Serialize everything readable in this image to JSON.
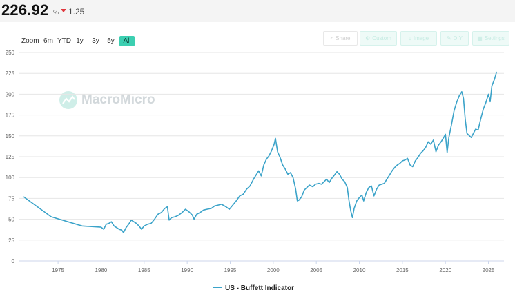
{
  "header": {
    "value": "226.92",
    "unit": "%",
    "change": "1.25",
    "change_direction": "down",
    "change_color": "#e0383e"
  },
  "range_selector": {
    "zoom_label": "Zoom",
    "buttons": [
      "6m",
      "YTD",
      "1y",
      "3y",
      "5y",
      "All"
    ],
    "active": "All"
  },
  "toolbar": {
    "share": "Share",
    "custom": "Custom",
    "image": "Image",
    "diy": "DIY",
    "settings": "Settings"
  },
  "watermark": {
    "text": "MacroMicro"
  },
  "chart_data": {
    "type": "line",
    "title": "",
    "xlabel": "",
    "ylabel": "",
    "xlim": [
      1970.5,
      2026.8
    ],
    "ylim": [
      0,
      250
    ],
    "y_ticks": [
      "0",
      "25",
      "50",
      "75",
      "100",
      "125",
      "150",
      "175",
      "200",
      "225",
      "250"
    ],
    "x_ticks": [
      "1975",
      "1980",
      "1985",
      "1990",
      "1995",
      "2000",
      "2005",
      "2010",
      "2015",
      "2020",
      "2025"
    ],
    "grid": true,
    "legend_position": "bottom-center",
    "series": [
      {
        "name": "US - Buffett Indicator",
        "color": "#3ba3c9",
        "points": [
          [
            1971.0,
            77
          ],
          [
            1974.2,
            53
          ],
          [
            1977.8,
            42
          ],
          [
            1980.0,
            40.5
          ],
          [
            1980.3,
            38
          ],
          [
            1980.6,
            44
          ],
          [
            1980.9,
            45
          ],
          [
            1981.2,
            47
          ],
          [
            1981.5,
            42
          ],
          [
            1981.8,
            40
          ],
          [
            1982.1,
            38
          ],
          [
            1982.4,
            37
          ],
          [
            1982.6,
            34
          ],
          [
            1982.9,
            40
          ],
          [
            1983.2,
            44
          ],
          [
            1983.5,
            49
          ],
          [
            1983.8,
            47
          ],
          [
            1984.1,
            45
          ],
          [
            1984.4,
            42
          ],
          [
            1984.7,
            38
          ],
          [
            1985.0,
            42
          ],
          [
            1985.4,
            44
          ],
          [
            1985.8,
            45
          ],
          [
            1986.2,
            50
          ],
          [
            1986.6,
            56
          ],
          [
            1987.0,
            58
          ],
          [
            1987.4,
            63
          ],
          [
            1987.7,
            65
          ],
          [
            1987.9,
            49
          ],
          [
            1988.2,
            52
          ],
          [
            1988.6,
            53
          ],
          [
            1989.0,
            55
          ],
          [
            1989.4,
            58
          ],
          [
            1989.8,
            62
          ],
          [
            1990.2,
            59
          ],
          [
            1990.6,
            55
          ],
          [
            1990.8,
            50
          ],
          [
            1991.1,
            56
          ],
          [
            1991.5,
            58
          ],
          [
            1991.9,
            61
          ],
          [
            1992.3,
            62
          ],
          [
            1992.8,
            63
          ],
          [
            1993.2,
            66
          ],
          [
            1993.6,
            67
          ],
          [
            1994.0,
            68
          ],
          [
            1994.5,
            65
          ],
          [
            1994.9,
            62
          ],
          [
            1995.3,
            67
          ],
          [
            1995.7,
            72
          ],
          [
            1996.1,
            78
          ],
          [
            1996.5,
            80
          ],
          [
            1996.9,
            86
          ],
          [
            1997.3,
            90
          ],
          [
            1997.7,
            98
          ],
          [
            1998.0,
            103
          ],
          [
            1998.3,
            108
          ],
          [
            1998.6,
            102
          ],
          [
            1998.9,
            115
          ],
          [
            1999.2,
            122
          ],
          [
            1999.5,
            126
          ],
          [
            1999.8,
            132
          ],
          [
            2000.1,
            140
          ],
          [
            2000.25,
            147
          ],
          [
            2000.5,
            131
          ],
          [
            2000.8,
            124
          ],
          [
            2001.1,
            115
          ],
          [
            2001.4,
            110
          ],
          [
            2001.7,
            104
          ],
          [
            2002.0,
            106
          ],
          [
            2002.3,
            100
          ],
          [
            2002.6,
            86
          ],
          [
            2002.8,
            72
          ],
          [
            2003.0,
            73
          ],
          [
            2003.3,
            77
          ],
          [
            2003.6,
            85
          ],
          [
            2003.9,
            88
          ],
          [
            2004.2,
            91
          ],
          [
            2004.6,
            89
          ],
          [
            2004.9,
            92
          ],
          [
            2005.3,
            93
          ],
          [
            2005.6,
            92
          ],
          [
            2005.9,
            95
          ],
          [
            2006.2,
            98
          ],
          [
            2006.5,
            94
          ],
          [
            2006.8,
            99
          ],
          [
            2007.1,
            103
          ],
          [
            2007.4,
            107
          ],
          [
            2007.7,
            104
          ],
          [
            2008.0,
            98
          ],
          [
            2008.3,
            95
          ],
          [
            2008.6,
            88
          ],
          [
            2008.8,
            72
          ],
          [
            2009.0,
            60
          ],
          [
            2009.2,
            52
          ],
          [
            2009.4,
            63
          ],
          [
            2009.7,
            72
          ],
          [
            2010.0,
            76
          ],
          [
            2010.3,
            79
          ],
          [
            2010.5,
            72
          ],
          [
            2010.8,
            82
          ],
          [
            2011.1,
            88
          ],
          [
            2011.4,
            90
          ],
          [
            2011.7,
            78
          ],
          [
            2012.0,
            86
          ],
          [
            2012.3,
            91
          ],
          [
            2012.6,
            92
          ],
          [
            2012.9,
            93
          ],
          [
            2013.2,
            98
          ],
          [
            2013.5,
            103
          ],
          [
            2013.8,
            108
          ],
          [
            2014.1,
            112
          ],
          [
            2014.4,
            115
          ],
          [
            2014.7,
            117
          ],
          [
            2015.0,
            120
          ],
          [
            2015.3,
            121
          ],
          [
            2015.6,
            123
          ],
          [
            2015.9,
            115
          ],
          [
            2016.2,
            113
          ],
          [
            2016.5,
            120
          ],
          [
            2016.8,
            124
          ],
          [
            2017.1,
            129
          ],
          [
            2017.4,
            132
          ],
          [
            2017.7,
            136
          ],
          [
            2018.0,
            143
          ],
          [
            2018.3,
            140
          ],
          [
            2018.6,
            145
          ],
          [
            2018.9,
            131
          ],
          [
            2019.2,
            139
          ],
          [
            2019.5,
            143
          ],
          [
            2019.8,
            148
          ],
          [
            2020.0,
            152
          ],
          [
            2020.2,
            130
          ],
          [
            2020.4,
            148
          ],
          [
            2020.7,
            163
          ],
          [
            2021.0,
            180
          ],
          [
            2021.3,
            190
          ],
          [
            2021.6,
            198
          ],
          [
            2021.9,
            203
          ],
          [
            2022.1,
            195
          ],
          [
            2022.3,
            170
          ],
          [
            2022.5,
            153
          ],
          [
            2022.8,
            150
          ],
          [
            2023.0,
            148
          ],
          [
            2023.2,
            152
          ],
          [
            2023.5,
            158
          ],
          [
            2023.8,
            157
          ],
          [
            2024.1,
            170
          ],
          [
            2024.4,
            182
          ],
          [
            2024.7,
            190
          ],
          [
            2025.0,
            200
          ],
          [
            2025.2,
            191
          ],
          [
            2025.4,
            210
          ],
          [
            2025.7,
            218
          ],
          [
            2025.95,
            226.92
          ]
        ]
      }
    ]
  }
}
